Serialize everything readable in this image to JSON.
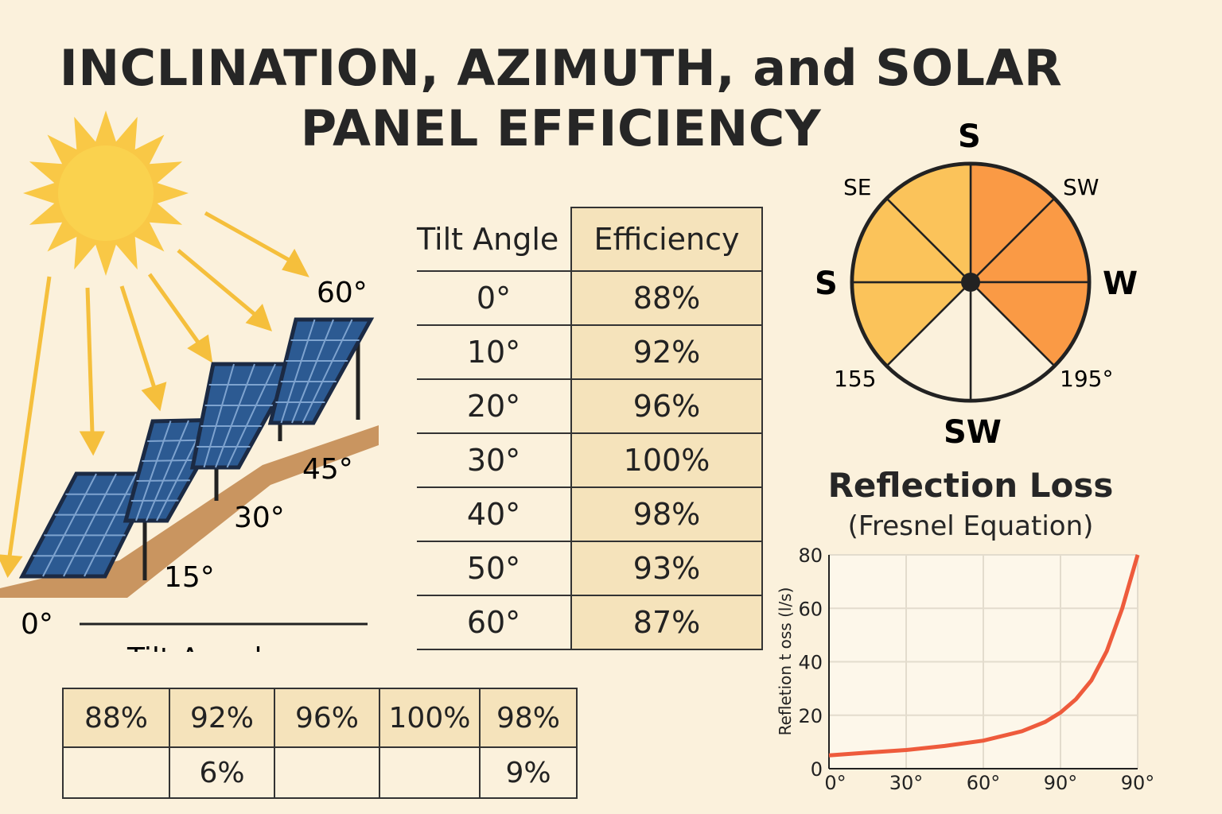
{
  "title": {
    "line1": "INCLINATION, AZIMUTH, and SOLAR",
    "line2": "PANEL EFFICIENCY"
  },
  "scene": {
    "angle_labels": [
      "0°",
      "15°",
      "30°",
      "45°",
      "60°"
    ],
    "caption": "Tilt Angule",
    "colors": {
      "sun": "#f9c846",
      "ray": "#f5bf3c",
      "panel": "#2c5a92",
      "ground": "#c99560"
    }
  },
  "main_table": {
    "header": [
      "Tilt Angle",
      "Efficiency"
    ],
    "rows": [
      [
        "0°",
        "88%"
      ],
      [
        "10°",
        "92%"
      ],
      [
        "20°",
        "96%"
      ],
      [
        "30°",
        "100%"
      ],
      [
        "40°",
        "98%"
      ],
      [
        "50°",
        "93%"
      ],
      [
        "60°",
        "87%"
      ]
    ]
  },
  "bottom_table": {
    "row1": [
      "88%",
      "92%",
      "96%",
      "100%",
      "98%"
    ],
    "row2": [
      "",
      "6%",
      "",
      "",
      "9%"
    ]
  },
  "compass": {
    "top": "S",
    "left": "S",
    "right": "W",
    "bottom": "SW",
    "top_left": "SE",
    "top_right": "SW",
    "bottom_left": "155",
    "bottom_right": "195°",
    "colors": {
      "left_sectors": "#fbc35a",
      "right_sectors": "#fa9a45",
      "bottom_sectors": "#fbf1dc"
    }
  },
  "reflection": {
    "title": "Reflection Loss",
    "subtitle": "(Fresnel Equation)"
  },
  "chart_data": {
    "type": "line",
    "title": "Reflection Loss",
    "subtitle": "(Fresnel Equation)",
    "xlabel": "",
    "ylabel": "Refletion t oss (l/s)",
    "x_tick_labels": [
      "0°",
      "30°",
      "60°",
      "90°",
      "90°"
    ],
    "y_ticks": [
      0,
      20,
      40,
      60,
      80
    ],
    "ylim": [
      0,
      80
    ],
    "xlim": [
      0,
      4
    ],
    "grid": true,
    "series": [
      {
        "color": "#ee5b3c",
        "x": [
          0,
          0.5,
          1,
          1.5,
          2,
          2.5,
          2.8,
          3.0,
          3.2,
          3.4,
          3.6,
          3.8,
          3.9,
          4.0
        ],
        "y": [
          5,
          6,
          7,
          8.5,
          10.5,
          14,
          17.5,
          21,
          26,
          33,
          44,
          60,
          70,
          80
        ]
      }
    ]
  }
}
